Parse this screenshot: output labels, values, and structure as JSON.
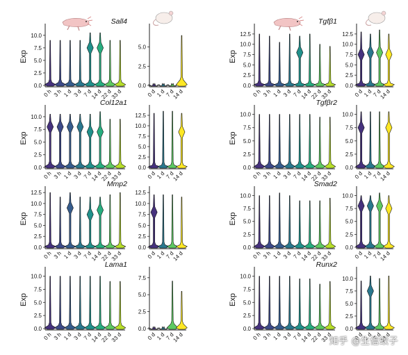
{
  "palette": [
    "#46327e",
    "#3d4a89",
    "#365c8d",
    "#2a788e",
    "#21918c",
    "#28ae80",
    "#5ec962",
    "#b7de2a",
    "#fde725"
  ],
  "mouse_palette": [
    "#46327e",
    "#2a788e",
    "#5ec962",
    "#fde725"
  ],
  "axolotl_times": [
    "0 h",
    "3 h",
    "1 d",
    "3 d",
    "7 d",
    "14 d",
    "22 d",
    "33 d"
  ],
  "mouse_times": [
    "0 d",
    "1 d",
    "7 d",
    "14 d"
  ],
  "watermark": "知乎 @生信蚊子",
  "chart_data": [
    {
      "type": "violin",
      "gene": "Sall4",
      "species": "axolotl",
      "ylabel": "Exp",
      "ylim": [
        0,
        11.5
      ],
      "ticks": [
        0.0,
        2.5,
        5.0,
        7.5,
        10.0
      ],
      "categories": [
        "0 h",
        "3 h",
        "1 d",
        "3 d",
        "7 d",
        "14 d",
        "22 d",
        "33 d"
      ],
      "max": [
        9.0,
        9.0,
        9.0,
        9.0,
        10.5,
        10.5,
        9.0,
        9.0
      ],
      "bulge": [
        0,
        0,
        0,
        0,
        7.5,
        7.5,
        0,
        0
      ]
    },
    {
      "type": "violin",
      "gene": "Sall4",
      "species": "mouse",
      "ylabel": "",
      "ylim": [
        0,
        7.5
      ],
      "ticks": [
        0.0,
        2.5,
        5.0
      ],
      "categories": [
        "0 d",
        "1 d",
        "7 d",
        "14 d"
      ],
      "max": [
        0.1,
        0.1,
        0.1,
        6.5
      ],
      "bulge": [
        0,
        0,
        0,
        0
      ]
    },
    {
      "type": "violin",
      "gene": "Col12a1",
      "species": "axolotl",
      "ylabel": "Exp",
      "ylim": [
        0,
        11.5
      ],
      "ticks": [
        0.0,
        2.5,
        5.0,
        7.5,
        10.0
      ],
      "categories": [
        "0 h",
        "3 h",
        "1 d",
        "3 d",
        "7 d",
        "14 d",
        "22 d",
        "33 d"
      ],
      "max": [
        10.5,
        10.5,
        10.5,
        10.5,
        10.5,
        11.0,
        9.5,
        9.5
      ],
      "bulge": [
        8.0,
        8.0,
        8.0,
        8.0,
        7.0,
        7.0,
        0,
        0
      ]
    },
    {
      "type": "violin",
      "gene": "Col12a1",
      "species": "mouse",
      "ylabel": "",
      "ylim": [
        0,
        14
      ],
      "ticks": [
        0.0,
        2.5,
        5.0,
        7.5,
        10.0,
        12.5
      ],
      "categories": [
        "0 d",
        "1 d",
        "7 d",
        "14 d"
      ],
      "max": [
        13.0,
        13.5,
        13.5,
        13.0
      ],
      "bulge": [
        0,
        0,
        0,
        8.5
      ]
    },
    {
      "type": "violin",
      "gene": "Mmp2",
      "species": "axolotl",
      "ylabel": "Exp",
      "ylim": [
        0,
        13
      ],
      "ticks": [
        0.0,
        2.5,
        5.0,
        7.5,
        10.0,
        12.5
      ],
      "categories": [
        "0 h",
        "3 h",
        "1 d",
        "3 d",
        "7 d",
        "14 d",
        "22 d",
        "33 d"
      ],
      "max": [
        12.5,
        11.5,
        12.5,
        11.5,
        11.5,
        11.5,
        12.0,
        12.5
      ],
      "bulge": [
        0,
        0,
        9.0,
        0,
        7.5,
        8.5,
        0,
        0
      ]
    },
    {
      "type": "violin",
      "gene": "Mmp2",
      "species": "mouse",
      "ylabel": "",
      "ylim": [
        0,
        13
      ],
      "ticks": [
        0.0,
        2.5,
        5.0,
        7.5,
        10.0,
        12.5
      ],
      "categories": [
        "0 d",
        "1 d",
        "7 d",
        "14 d"
      ],
      "max": [
        12.0,
        12.0,
        12.0,
        11.5
      ],
      "bulge": [
        8.0,
        0,
        0,
        0
      ]
    },
    {
      "type": "violin",
      "gene": "Lama1",
      "species": "axolotl",
      "ylabel": "Exp",
      "ylim": [
        0,
        11
      ],
      "ticks": [
        0.0,
        2.5,
        5.0,
        7.5,
        10.0
      ],
      "categories": [
        "0 h",
        "3 h",
        "1 d",
        "3 d",
        "7 d",
        "14 d",
        "22 d",
        "33 d"
      ],
      "max": [
        10.0,
        10.0,
        10.0,
        10.0,
        10.0,
        10.0,
        9.0,
        9.0
      ],
      "bulge": [
        0,
        0,
        0,
        0,
        0,
        0,
        0,
        0
      ]
    },
    {
      "type": "violin",
      "gene": "Lama1",
      "species": "mouse",
      "ylabel": "",
      "ylim": [
        0,
        8.5
      ],
      "ticks": [
        0.0,
        2.5,
        5.0,
        7.5
      ],
      "categories": [
        "0 d",
        "1 d",
        "7 d",
        "14 d"
      ],
      "max": [
        0.1,
        0.1,
        7.0,
        5.5
      ],
      "bulge": [
        0,
        0,
        0,
        0
      ]
    },
    {
      "type": "violin",
      "gene": "Tgfβ1",
      "species": "axolotl",
      "ylabel": "Exp",
      "ylim": [
        0,
        14
      ],
      "ticks": [
        0.0,
        2.5,
        5.0,
        7.5,
        10.0,
        12.5
      ],
      "categories": [
        "0 h",
        "3 h",
        "1 d",
        "3 d",
        "7 d",
        "14 d",
        "22 d",
        "33 d"
      ],
      "max": [
        12.5,
        12.0,
        10.5,
        12.5,
        12.0,
        12.5,
        10.0,
        9.5
      ],
      "bulge": [
        0,
        0,
        0,
        0,
        8.0,
        0,
        0,
        0
      ]
    },
    {
      "type": "violin",
      "gene": "Tgfβ1",
      "species": "mouse",
      "ylabel": "",
      "ylim": [
        0,
        14
      ],
      "ticks": [
        0.0,
        2.5,
        5.0,
        7.5,
        10.0,
        12.5
      ],
      "categories": [
        "0 d",
        "1 d",
        "7 d",
        "14 d"
      ],
      "max": [
        13.0,
        12.5,
        13.5,
        12.5
      ],
      "bulge": [
        7.5,
        8.0,
        8.0,
        7.5
      ]
    },
    {
      "type": "violin",
      "gene": "Tgfβr2",
      "species": "axolotl",
      "ylabel": "Exp",
      "ylim": [
        0,
        11
      ],
      "ticks": [
        0.0,
        2.5,
        5.0,
        7.5,
        10.0
      ],
      "categories": [
        "0 h",
        "3 h",
        "1 d",
        "3 d",
        "7 d",
        "14 d",
        "22 d",
        "33 d"
      ],
      "max": [
        10.0,
        10.0,
        10.0,
        10.0,
        10.0,
        10.0,
        9.5,
        9.5
      ],
      "bulge": [
        0,
        0,
        0,
        0,
        0,
        0,
        0,
        0
      ]
    },
    {
      "type": "violin",
      "gene": "Tgfβr2",
      "species": "mouse",
      "ylabel": "",
      "ylim": [
        0,
        11
      ],
      "ticks": [
        0.0,
        2.5,
        5.0,
        7.5,
        10.0
      ],
      "categories": [
        "0 d",
        "1 d",
        "7 d",
        "14 d"
      ],
      "max": [
        10.5,
        10.5,
        10.5,
        10.5
      ],
      "bulge": [
        7.5,
        0,
        0,
        7.5
      ]
    },
    {
      "type": "violin",
      "gene": "Smad2",
      "species": "axolotl",
      "ylabel": "Exp",
      "ylim": [
        0,
        11
      ],
      "ticks": [
        0.0,
        2.5,
        5.0,
        7.5,
        10.0
      ],
      "categories": [
        "0 h",
        "3 h",
        "1 d",
        "3 d",
        "7 d",
        "14 d",
        "22 d",
        "33 d"
      ],
      "max": [
        10.0,
        10.0,
        10.5,
        10.0,
        9.0,
        9.0,
        9.0,
        9.5
      ],
      "bulge": [
        0,
        0,
        0,
        0,
        0,
        0,
        0,
        0
      ]
    },
    {
      "type": "violin",
      "gene": "Smad2",
      "species": "mouse",
      "ylabel": "",
      "ylim": [
        0,
        11
      ],
      "ticks": [
        0.0,
        2.5,
        5.0,
        7.5,
        10.0
      ],
      "categories": [
        "0 d",
        "1 d",
        "7 d",
        "14 d"
      ],
      "max": [
        10.0,
        10.0,
        10.5,
        10.0
      ],
      "bulge": [
        8.0,
        8.0,
        8.0,
        7.5
      ]
    },
    {
      "type": "violin",
      "gene": "Runx2",
      "species": "axolotl",
      "ylabel": "Exp",
      "ylim": [
        0,
        11
      ],
      "ticks": [
        0.0,
        2.5,
        5.0,
        7.5,
        10.0
      ],
      "categories": [
        "0 h",
        "3 h",
        "1 d",
        "3 d",
        "7 d",
        "14 d",
        "22 d",
        "33 d"
      ],
      "max": [
        10.0,
        10.0,
        10.0,
        10.0,
        9.5,
        9.5,
        8.5,
        9.0
      ],
      "bulge": [
        0,
        0,
        0,
        0,
        0,
        0,
        0,
        0
      ]
    },
    {
      "type": "violin",
      "gene": "Runx2",
      "species": "mouse",
      "ylabel": "",
      "ylim": [
        0,
        11.5
      ],
      "ticks": [
        0.0,
        2.5,
        5.0,
        7.5,
        10.0
      ],
      "categories": [
        "0 d",
        "1 d",
        "7 d",
        "14 d"
      ],
      "max": [
        9.5,
        10.5,
        10.0,
        10.5
      ],
      "bulge": [
        0,
        7.5,
        0,
        0
      ]
    }
  ]
}
